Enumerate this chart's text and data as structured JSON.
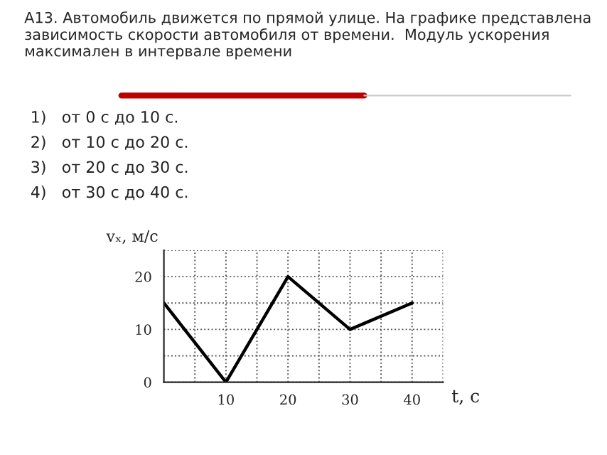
{
  "chart_data": {
    "type": "line",
    "title": "А13. Автомобиль движется по прямой улице. На графике представлена зависимость скорости автомобиля от времени.  Модуль ускорения максимален в интервале времени",
    "annotations": [
      "1)   от 0 с до 10 с.",
      "2)   от 10 с до 20 с.",
      "3)   от 20 с до 30 с.",
      "4)   от 30 с до 40 с."
    ],
    "x": [
      0,
      10,
      20,
      30,
      40
    ],
    "series": [
      {
        "color": "#000000",
        "values": [
          15,
          0,
          20,
          10,
          15
        ]
      }
    ],
    "xlim": [
      0,
      45
    ],
    "ylim": [
      0,
      25
    ],
    "xticks": [
      {
        "value": 5,
        "label": null
      },
      10,
      {
        "value": 15,
        "label": null
      },
      20,
      {
        "value": 25,
        "label": null
      },
      30,
      {
        "value": 35,
        "label": null
      },
      40,
      {
        "value": 45,
        "label": null
      }
    ],
    "yticks": [
      0,
      {
        "value": 5,
        "label": null
      },
      10,
      {
        "value": 15,
        "label": null
      },
      20,
      {
        "value": 25,
        "label": null
      }
    ],
    "xlabel": "t, c",
    "ylabel": "vₓ, м/с",
    "grid": true,
    "marker": "none",
    "line_style": "solid"
  }
}
